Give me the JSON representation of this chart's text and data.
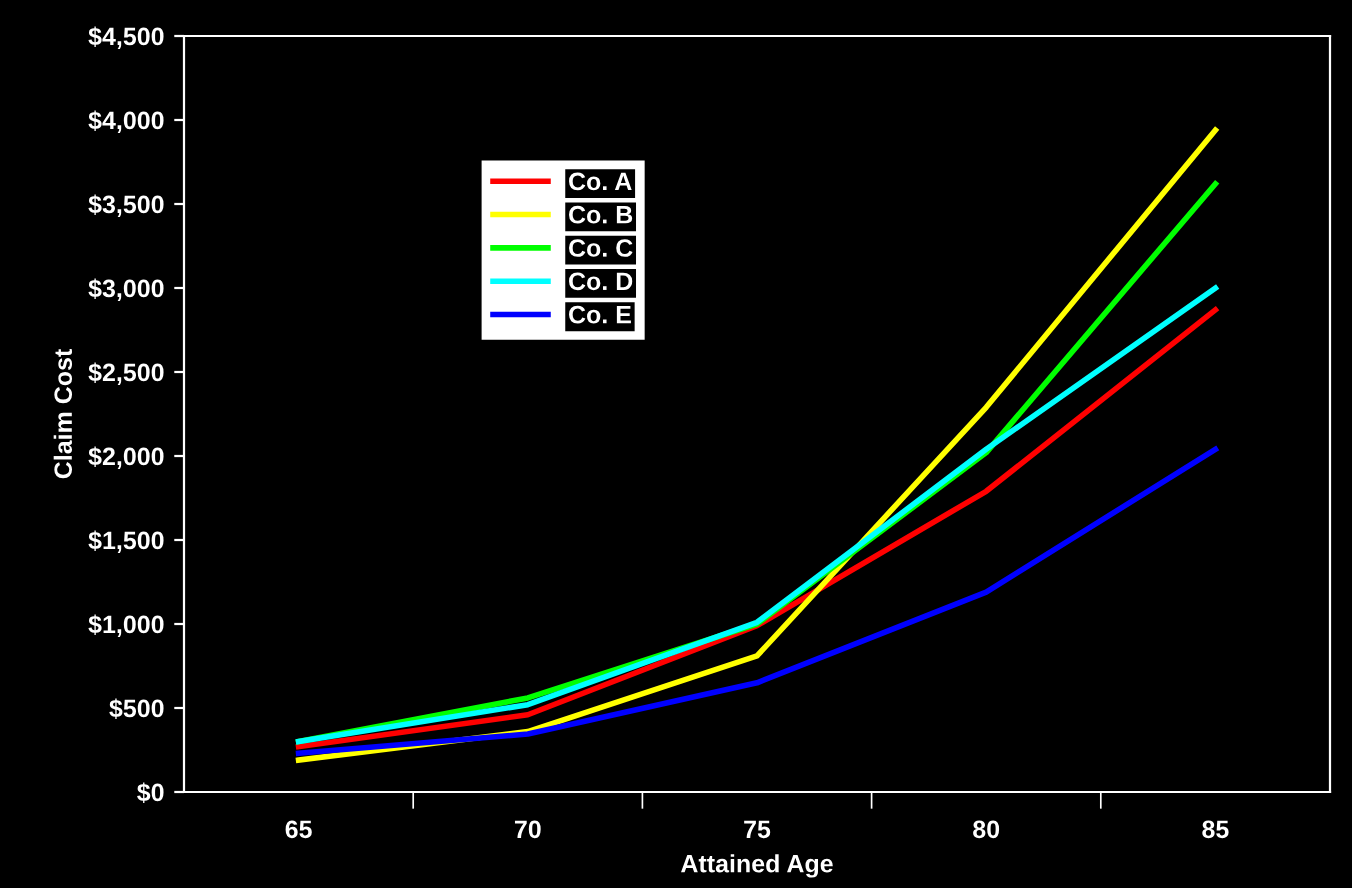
{
  "chart_data": {
    "type": "line",
    "xlabel": "Attained Age",
    "ylabel": "Claim Cost",
    "categories": [
      "65",
      "70",
      "75",
      "80",
      "85"
    ],
    "series": [
      {
        "name": "Co. A",
        "color": "#ff0000",
        "values": [
          270,
          460,
          990,
          1790,
          2870
        ]
      },
      {
        "name": "Co. B",
        "color": "#ffff00",
        "values": [
          190,
          360,
          810,
          2290,
          3940
        ]
      },
      {
        "name": "Co. C",
        "color": "#00ff00",
        "values": [
          300,
          560,
          1000,
          2020,
          3620
        ]
      },
      {
        "name": "Co. D",
        "color": "#00ffff",
        "values": [
          300,
          520,
          1010,
          2040,
          3000
        ]
      },
      {
        "name": "Co. E",
        "color": "#0000ff",
        "values": [
          230,
          345,
          650,
          1190,
          2040
        ]
      }
    ],
    "ylim": [
      0,
      4500
    ],
    "yticks": [
      {
        "value": 0,
        "label": "$0"
      },
      {
        "value": 500,
        "label": "$500"
      },
      {
        "value": 1000,
        "label": "$1,000"
      },
      {
        "value": 1500,
        "label": "$1,500"
      },
      {
        "value": 2000,
        "label": "$2,000"
      },
      {
        "value": 2500,
        "label": "$2,500"
      },
      {
        "value": 3000,
        "label": "$3,000"
      },
      {
        "value": 3500,
        "label": "$3,500"
      },
      {
        "value": 4000,
        "label": "$4,000"
      },
      {
        "value": 4500,
        "label": "$4,500"
      }
    ],
    "legend": "top left",
    "grid": false,
    "marker": "none",
    "line_style": "solid"
  }
}
